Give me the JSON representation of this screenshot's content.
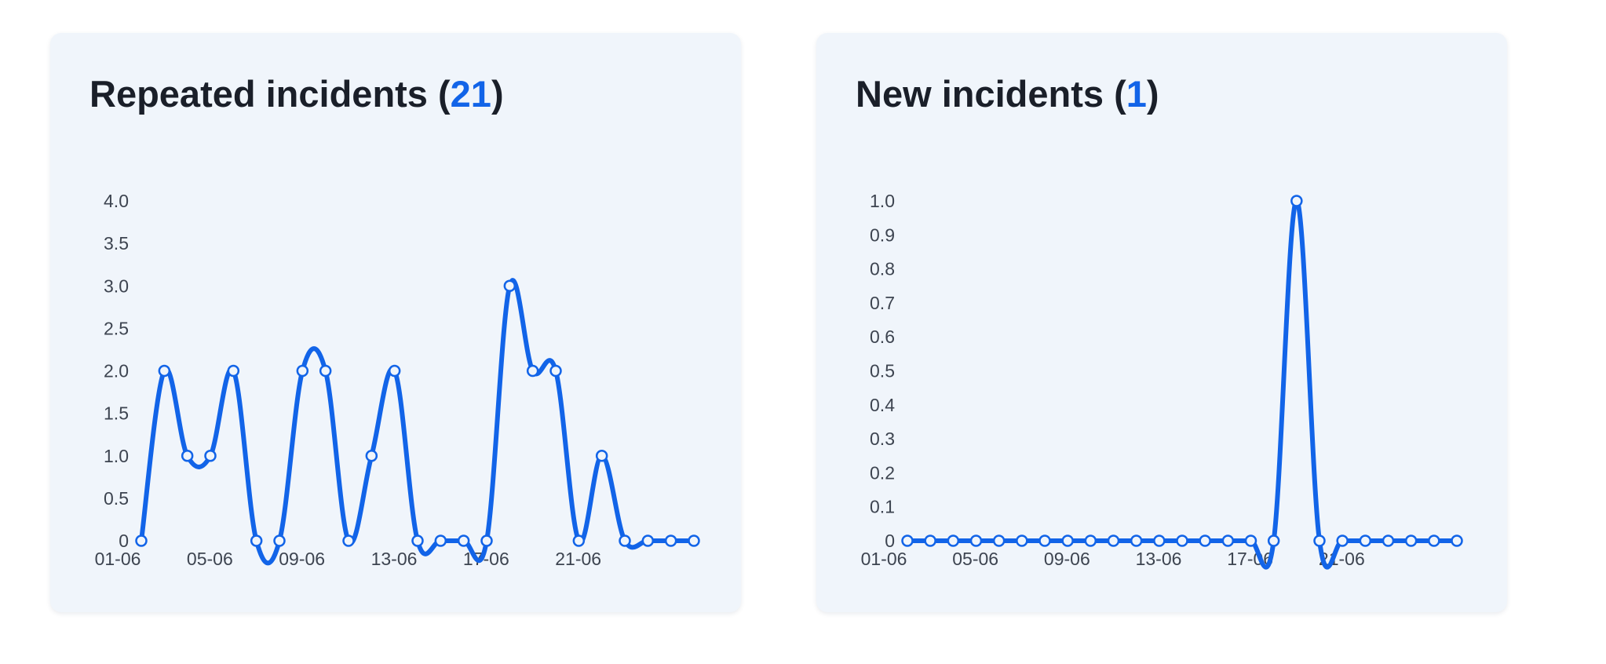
{
  "colors": {
    "accent": "#1264e8",
    "title": "#1a1f29",
    "card": "#f0f5fb",
    "tick": "#3d4450"
  },
  "chart_data": [
    {
      "type": "line",
      "title": "Repeated incidents",
      "count": "21",
      "x": [
        "01-06",
        "02-06",
        "03-06",
        "04-06",
        "05-06",
        "06-06",
        "07-06",
        "08-06",
        "09-06",
        "10-06",
        "11-06",
        "12-06",
        "13-06",
        "14-06",
        "15-06",
        "16-06",
        "17-06",
        "18-06",
        "19-06",
        "20-06",
        "21-06",
        "22-06",
        "23-06",
        "24-06",
        "25-06"
      ],
      "x_tick_labels": [
        "01-06",
        "05-06",
        "09-06",
        "13-06",
        "17-06",
        "21-06"
      ],
      "series": [
        {
          "values": [
            0,
            2,
            1,
            1,
            2,
            0,
            0,
            2,
            2,
            0,
            1,
            2,
            0,
            0,
            0,
            0,
            3,
            2,
            2,
            0,
            1,
            0,
            0,
            0,
            0
          ]
        }
      ],
      "y_ticks": [
        "0",
        "0.5",
        "1.0",
        "1.5",
        "2.0",
        "2.5",
        "3.0",
        "3.5",
        "4.0"
      ],
      "ylim": [
        0,
        4
      ],
      "smooth": true,
      "markers": "hollow-circle",
      "grid": false,
      "legend": "none",
      "xlabel": "",
      "ylabel": ""
    },
    {
      "type": "line",
      "title": "New incidents",
      "count": "1",
      "x": [
        "01-06",
        "02-06",
        "03-06",
        "04-06",
        "05-06",
        "06-06",
        "07-06",
        "08-06",
        "09-06",
        "10-06",
        "11-06",
        "12-06",
        "13-06",
        "14-06",
        "15-06",
        "16-06",
        "17-06",
        "18-06",
        "19-06",
        "20-06",
        "21-06",
        "22-06",
        "23-06",
        "24-06",
        "25-06"
      ],
      "x_tick_labels": [
        "01-06",
        "05-06",
        "09-06",
        "13-06",
        "17-06",
        "21-06"
      ],
      "series": [
        {
          "values": [
            0,
            0,
            0,
            0,
            0,
            0,
            0,
            0,
            0,
            0,
            0,
            0,
            0,
            0,
            0,
            0,
            0,
            1,
            0,
            0,
            0,
            0,
            0,
            0,
            0
          ]
        }
      ],
      "y_ticks": [
        "0",
        "0.1",
        "0.2",
        "0.3",
        "0.4",
        "0.5",
        "0.6",
        "0.7",
        "0.8",
        "0.9",
        "1.0"
      ],
      "ylim": [
        0,
        1
      ],
      "smooth": true,
      "markers": "hollow-circle",
      "grid": false,
      "legend": "none",
      "xlabel": "",
      "ylabel": ""
    }
  ]
}
